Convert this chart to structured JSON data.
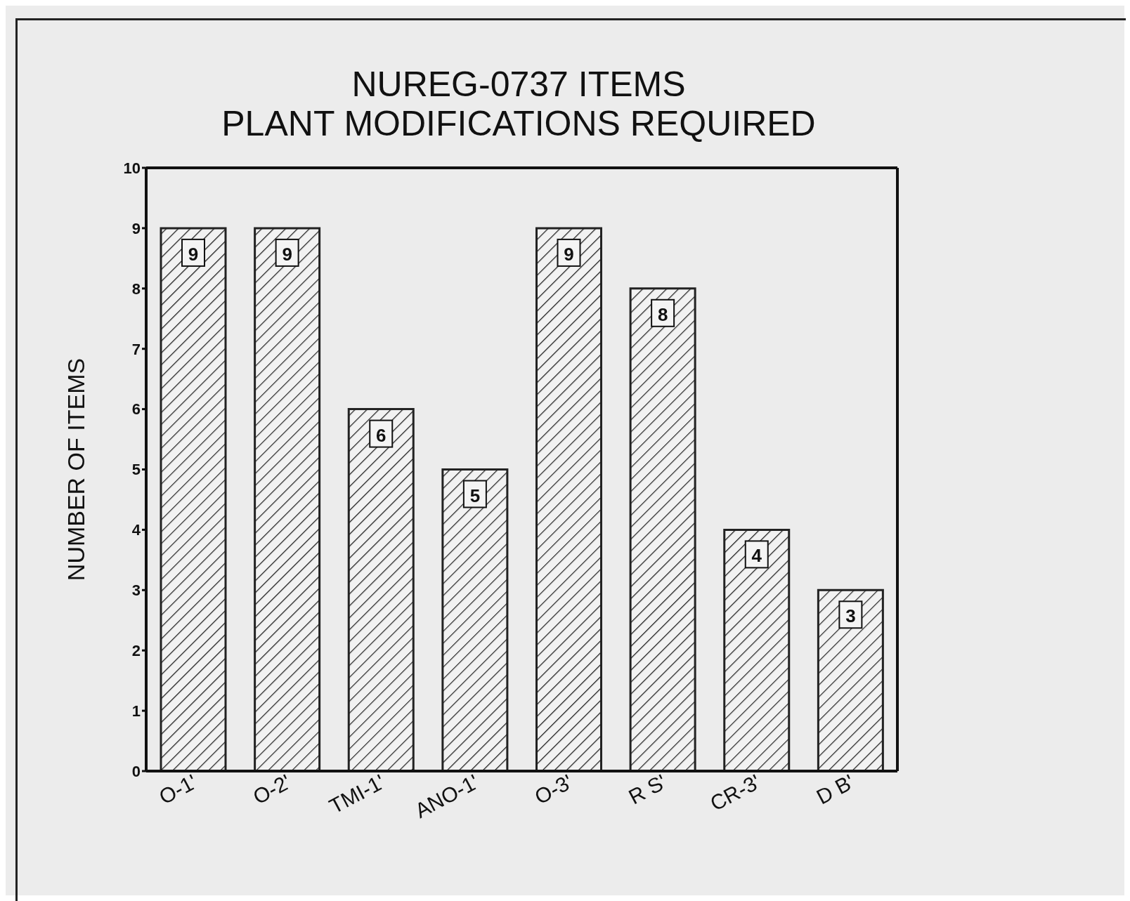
{
  "chart_data": {
    "type": "bar",
    "title": "NUREG-0737 ITEMS",
    "subtitle": "PLANT MODIFICATIONS REQUIRED",
    "ylabel": "NUMBER OF ITEMS",
    "categories": [
      "O-1'",
      "O-2'",
      "TMI-1'",
      "ANO-1'",
      "O-3'",
      "R S'",
      "CR-3'",
      "D B'"
    ],
    "values": [
      9,
      9,
      6,
      5,
      9,
      8,
      4,
      3
    ],
    "color": "#222222",
    "ylim": [
      0,
      10
    ],
    "yticks": [
      0,
      1,
      2,
      3,
      4,
      5,
      6,
      7,
      8,
      9,
      10
    ],
    "grid": false,
    "data_labels": true
  }
}
